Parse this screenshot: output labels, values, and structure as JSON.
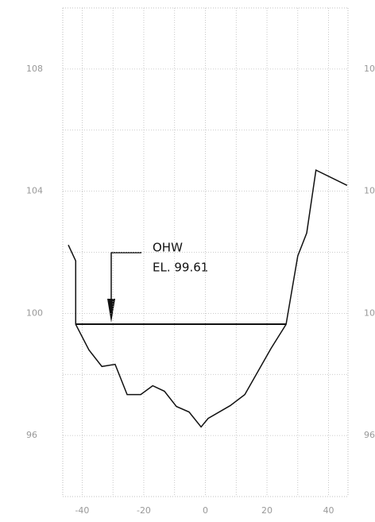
{
  "chart_data": {
    "type": "line",
    "annotations": [
      "OHW",
      "EL. 99.61"
    ],
    "series": [
      {
        "color": "#111111",
        "x": [
          -44.5,
          -42.1,
          -42.1,
          -37.8,
          -33.6,
          -29.3,
          -25.4,
          -21.0,
          -17.1,
          -13.3,
          -9.4,
          -5.3,
          -1.4,
          0.9,
          8.1,
          12.8,
          21.3,
          26.2,
          30.0,
          32.9,
          35.9,
          46.0
        ],
        "values": [
          102.24,
          101.72,
          99.64,
          98.8,
          98.26,
          98.33,
          97.34,
          97.34,
          97.63,
          97.45,
          96.95,
          96.77,
          96.28,
          96.56,
          96.98,
          97.34,
          98.85,
          99.64,
          101.88,
          102.63,
          104.69,
          104.19
        ]
      }
    ],
    "xlim": [
      -46.3,
      46.3
    ],
    "ylim": [
      94,
      110
    ],
    "xticks": [
      -40,
      -20,
      0,
      20,
      40
    ],
    "yticks": [
      96,
      100,
      104,
      108
    ],
    "xgrid": [
      -40,
      -30,
      -20,
      -10,
      0,
      10,
      20,
      30,
      40
    ],
    "ygrid": [
      96,
      98,
      100,
      102,
      104,
      106,
      108
    ],
    "grid": true
  }
}
